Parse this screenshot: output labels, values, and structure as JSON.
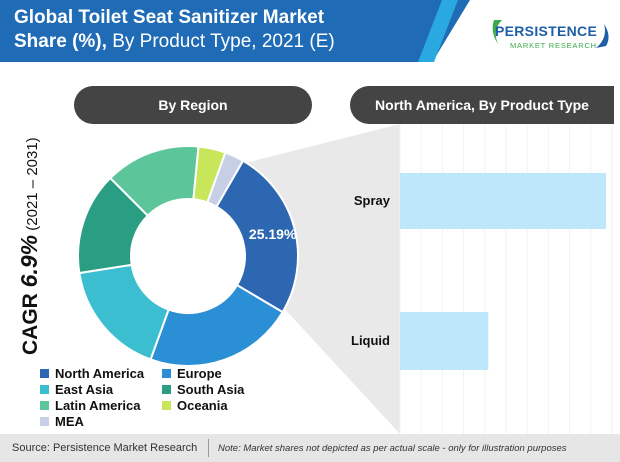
{
  "header": {
    "title_bold": "Global Toilet Seat Sanitizer Market",
    "title_line2_bold": "Share (%),",
    "title_line2_rest": " By Product Type, 2021 (E)"
  },
  "logo": {
    "name": "PERSISTENCE",
    "sub": "MARKET RESEARCH"
  },
  "cagr": {
    "label": "CAGR ",
    "value": "6.9%",
    "period": " (2021 – 2031)"
  },
  "pills": {
    "left": "By Region",
    "right": "North America, By Product Type"
  },
  "colors": {
    "north_america": "#2e67b1",
    "europe": "#2b8fd6",
    "east_asia": "#3bbfd0",
    "south_asia": "#2a9e82",
    "latin_america": "#5cc59a",
    "oceania": "#c8e65a",
    "mea": "#c7cfe6",
    "bar": "#bfe7fb",
    "pill": "#444444"
  },
  "chart_data": [
    {
      "type": "pie",
      "title": "By Region",
      "categories": [
        "North America",
        "Europe",
        "East Asia",
        "South Asia",
        "Latin America",
        "Oceania",
        "MEA"
      ],
      "values": [
        25.19,
        22.0,
        17.0,
        15.0,
        14.0,
        4.0,
        2.81
      ],
      "data_labels": [
        "25.19%",
        "",
        "",
        "",
        "",
        "",
        ""
      ],
      "donut": true
    },
    {
      "type": "bar",
      "orientation": "horizontal",
      "title": "North America, By Product Type",
      "categories": [
        "Spray",
        "Liquid"
      ],
      "values": [
        70,
        30
      ]
    }
  ],
  "legend": [
    {
      "label": "North America",
      "color": "#2e67b1"
    },
    {
      "label": "Europe",
      "color": "#2b8fd6"
    },
    {
      "label": "East Asia",
      "color": "#3bbfd0"
    },
    {
      "label": "South Asia",
      "color": "#2a9e82"
    },
    {
      "label": "Latin America",
      "color": "#5cc59a"
    },
    {
      "label": "Oceania",
      "color": "#c8e65a"
    },
    {
      "label": "MEA",
      "color": "#c7cfe6"
    }
  ],
  "footer": {
    "source": "Source: Persistence Market Research",
    "note": "Note: Market shares not depicted as per actual scale - only for illustration purposes"
  }
}
